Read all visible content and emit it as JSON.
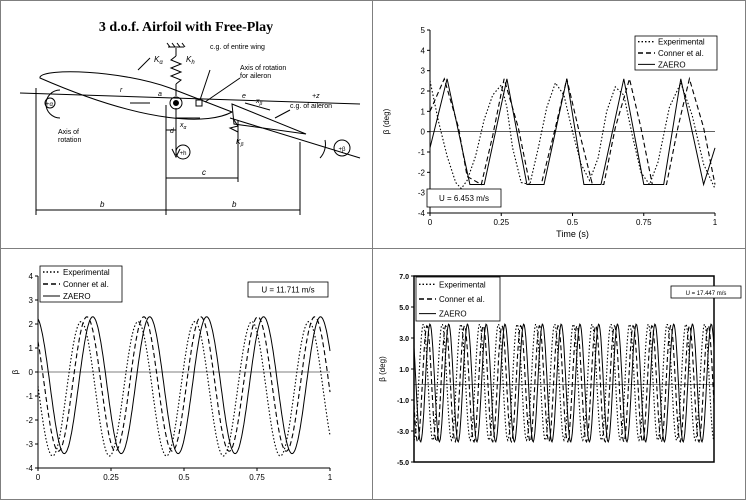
{
  "diagram": {
    "title": "3 d.o.f. Airfoil with Free-Play",
    "labels": {
      "K_alpha": "K",
      "K_alpha_sub": "α",
      "K_h": "K",
      "K_h_sub": "h",
      "cg_wing": "c.g. of entire wing",
      "axis_aileron_1": "Axis of rotation",
      "axis_aileron_2": "for aileron",
      "plus_z": "+z",
      "plus_alpha": "+α",
      "e": "e",
      "x_beta": "x",
      "x_beta_sub": "β",
      "cg_aileron": "c.g. of aileron",
      "a": "a",
      "x_alpha": "x",
      "x_alpha_sub": "α",
      "r": "r",
      "axis_rot_1": "Axis of",
      "axis_rot_2": "rotation",
      "d": "d",
      "K_beta": "K",
      "K_beta_sub": "β",
      "plus_h": "+h",
      "plus_beta": "+β",
      "c": "c",
      "b1": "b",
      "b2": "b"
    }
  },
  "chart_data": [
    {
      "id": "chart1",
      "type": "line",
      "xlabel": "Time (s)",
      "ylabel": "β (deg)",
      "xlim": [
        0,
        1
      ],
      "ylim": [
        -4,
        5
      ],
      "xticks": [
        "0",
        "0.25",
        "0.5",
        "0.75",
        "1"
      ],
      "xtick_values": [
        0,
        0.25,
        0.5,
        0.75,
        1
      ],
      "yticks": [
        "5",
        "4",
        "3",
        "2",
        "1",
        "0",
        "-1",
        "-2",
        "-3",
        "-4"
      ],
      "ytick_values": [
        5,
        4,
        3,
        2,
        1,
        0,
        -1,
        -2,
        -3,
        -4
      ],
      "annotation": "U = 6.453 m/s",
      "legend_position": "top-right",
      "series": [
        {
          "name": "Experimental",
          "style": "dotted",
          "x": [
            0,
            0.03,
            0.06,
            0.09,
            0.11,
            0.13,
            0.16,
            0.19,
            0.22,
            0.25,
            0.27,
            0.29,
            0.32,
            0.35,
            0.38,
            0.41,
            0.44,
            0.47,
            0.5,
            0.53,
            0.56,
            0.59,
            0.62,
            0.65,
            0.68,
            0.71,
            0.74,
            0.77,
            0.8,
            0.84,
            0.88,
            0.92,
            0.96,
            1.0
          ],
          "y": [
            2.5,
            0.5,
            -1.2,
            -2.5,
            -2.8,
            -2.4,
            -1.2,
            0.6,
            1.8,
            2.3,
            1.2,
            -0.8,
            -2.5,
            -2.6,
            -0.8,
            1.2,
            2.4,
            1.8,
            0.0,
            -1.6,
            -2.4,
            -1.3,
            1.0,
            2.2,
            1.8,
            -0.2,
            -2.0,
            -2.6,
            -1.5,
            1.2,
            2.4,
            0.8,
            -1.6,
            -2.8
          ]
        },
        {
          "name": "Conner et al.",
          "style": "dashed",
          "x": [
            0,
            0.05,
            0.1,
            0.13,
            0.18,
            0.22,
            0.26,
            0.31,
            0.35,
            0.39,
            0.44,
            0.48,
            0.52,
            0.57,
            0.61,
            0.65,
            0.7,
            0.74,
            0.78,
            0.83,
            0.87,
            0.91,
            0.96,
            1.0
          ],
          "y": [
            1.0,
            2.6,
            0.2,
            -2.2,
            -2.6,
            -0.2,
            2.6,
            0.2,
            -2.6,
            -2.6,
            0.2,
            2.6,
            0.2,
            -2.6,
            -2.6,
            0.2,
            2.6,
            0.2,
            -2.6,
            -2.6,
            0.2,
            2.6,
            0.2,
            -2.6
          ]
        },
        {
          "name": "ZAERO",
          "style": "solid",
          "x": [
            0,
            0.06,
            0.14,
            0.19,
            0.27,
            0.34,
            0.4,
            0.48,
            0.54,
            0.6,
            0.68,
            0.75,
            0.82,
            0.88,
            0.96,
            1.0
          ],
          "y": [
            -0.8,
            2.6,
            -2.6,
            -2.6,
            2.6,
            -2.6,
            -2.6,
            2.6,
            -2.6,
            -2.6,
            2.6,
            -2.6,
            -2.6,
            2.6,
            -2.6,
            -0.8
          ]
        }
      ]
    },
    {
      "id": "chart2",
      "type": "line",
      "xlabel": "",
      "ylabel": "β",
      "xlim": [
        0,
        1
      ],
      "ylim": [
        -4,
        4
      ],
      "xticks": [
        "0",
        "0.25",
        "0.5",
        "0.75",
        "1"
      ],
      "xtick_values": [
        0,
        0.25,
        0.5,
        0.75,
        1
      ],
      "yticks": [
        "4",
        "3",
        "2",
        "1",
        "0",
        "-1",
        "-2",
        "-3",
        "-4"
      ],
      "ytick_values": [
        4,
        3,
        2,
        1,
        0,
        -1,
        -2,
        -3,
        -4
      ],
      "annotation": "U = 11.711 m/s",
      "legend_position": "top-left",
      "series": [
        {
          "name": "Experimental",
          "style": "dotted",
          "period": 0.195,
          "phase": 0.05,
          "amp_hi": 2.1,
          "amp_lo": -3.5
        },
        {
          "name": "Conner et al.",
          "style": "dashed",
          "period": 0.195,
          "phase": 0.07,
          "amp_hi": 2.3,
          "amp_lo": -3.3
        },
        {
          "name": "ZAERO",
          "style": "solid",
          "period": 0.195,
          "phase": 0.09,
          "amp_hi": 2.3,
          "amp_lo": -3.4
        }
      ]
    },
    {
      "id": "chart3",
      "type": "line",
      "xlabel": "",
      "ylabel": "β (deg)",
      "xlim": [
        0,
        1
      ],
      "ylim": [
        -5.0,
        7.0
      ],
      "xticks": [],
      "xtick_values": [],
      "yticks": [
        "7.0",
        "5.0",
        "3.0",
        "1.0",
        "-1.0",
        "-3.0",
        "-5.0"
      ],
      "ytick_values": [
        7,
        5,
        3,
        1,
        -1,
        -3,
        -5
      ],
      "annotation": "U = 17.447 m/s",
      "legend_position": "top-left",
      "series": [
        {
          "name": "Experimental",
          "style": "dotted",
          "period": 0.0625,
          "phase": 0.0,
          "amp_hi": 3.9,
          "amp_lo": -3.6
        },
        {
          "name": "Conner et al.",
          "style": "dashed",
          "period": 0.0625,
          "phase": 0.012,
          "amp_hi": 3.8,
          "amp_lo": -3.7
        },
        {
          "name": "ZAERO",
          "style": "solid",
          "period": 0.0625,
          "phase": 0.022,
          "amp_hi": 3.9,
          "amp_lo": -3.7
        }
      ]
    }
  ]
}
